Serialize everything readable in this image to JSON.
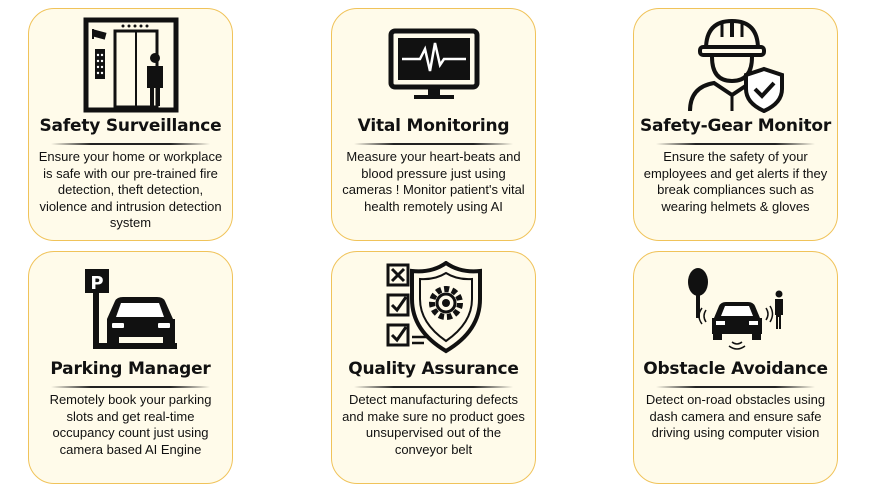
{
  "cards": [
    {
      "title": "Safety Surveillance",
      "description": "Ensure your home or workplace is safe with our pre-trained fire detection, theft detection, violence and intrusion detection system",
      "icon": "elevator-surveillance-icon"
    },
    {
      "title": "Vital Monitoring",
      "description": "Measure your heart-beats and blood pressure just using cameras ! Monitor patient's vital health remotely using AI",
      "icon": "heartbeat-monitor-icon"
    },
    {
      "title": "Safety-Gear Monitor",
      "description": "Ensure the safety of your employees and get alerts if they break compliances such as wearing helmets & gloves",
      "icon": "hardhat-worker-shield-icon"
    },
    {
      "title": "Parking Manager",
      "description": "Remotely book your parking slots and get real-time occupancy count just using camera based AI Engine",
      "icon": "parking-car-icon"
    },
    {
      "title": "Quality Assurance",
      "description": "Detect manufacturing defects and make sure no product goes unsupervised out of the conveyor belt",
      "icon": "checklist-shield-gear-icon"
    },
    {
      "title": "Obstacle Avoidance",
      "description": "Detect on-road obstacles using dash camera and ensure safe driving using computer vision",
      "icon": "car-pedestrian-sensor-icon"
    }
  ],
  "colors": {
    "card_background": "#fffbea",
    "card_border": "#f0c35a",
    "text": "#111111"
  }
}
